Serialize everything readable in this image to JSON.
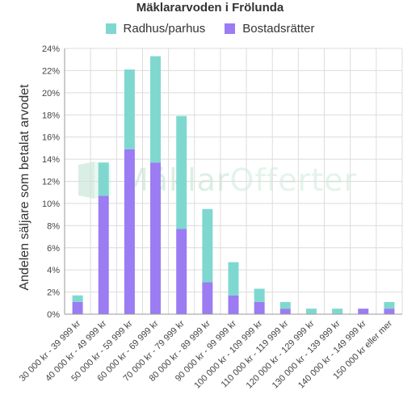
{
  "chart_data": {
    "type": "bar",
    "stacked": true,
    "title": "Mäklararvoden i Frölunda",
    "ylabel": "Andelen säljare som betalat arvodet",
    "xlabel": "",
    "ylim": [
      0,
      24
    ],
    "yticks": [
      "0%",
      "2%",
      "4%",
      "6%",
      "8%",
      "10%",
      "12%",
      "14%",
      "16%",
      "18%",
      "20%",
      "22%",
      "24%"
    ],
    "ytick_values": [
      0,
      2,
      4,
      6,
      8,
      10,
      12,
      14,
      16,
      18,
      20,
      22,
      24
    ],
    "grid": true,
    "legend_position": "top-center",
    "categories": [
      "30 000 kr - 39 999 kr",
      "40 000 kr - 49 999 kr",
      "50 000 kr - 59 999 kr",
      "60 000 kr - 69 999 kr",
      "70 000 kr - 79 999 kr",
      "80 000 kr - 89 999 kr",
      "90 000 kr - 99 999 kr",
      "100 000 kr - 109 999 kr",
      "110 000 kr - 119 999 kr",
      "120 000 kr - 129 999 kr",
      "130 000 kr - 139 999 kr",
      "140 000 kr - 149 999 kr",
      "150 000 kr eller mer"
    ],
    "series": [
      {
        "name": "Bostadsrätter",
        "color": "#9b7cf2",
        "values": [
          1.1,
          10.7,
          14.9,
          13.7,
          7.7,
          2.9,
          1.7,
          1.1,
          0.5,
          0,
          0,
          0.5,
          0.5
        ]
      },
      {
        "name": "Radhus/parhus",
        "color": "#7fd8d0",
        "values": [
          0.6,
          3.0,
          7.2,
          9.6,
          10.2,
          6.6,
          3.0,
          1.2,
          0.6,
          0.5,
          0.5,
          0,
          0.6
        ]
      }
    ],
    "legend_order": [
      "Radhus/parhus",
      "Bostadsrätter"
    ]
  },
  "watermark": {
    "text_part1": "Mäklar",
    "text_part2": "Offerter"
  }
}
